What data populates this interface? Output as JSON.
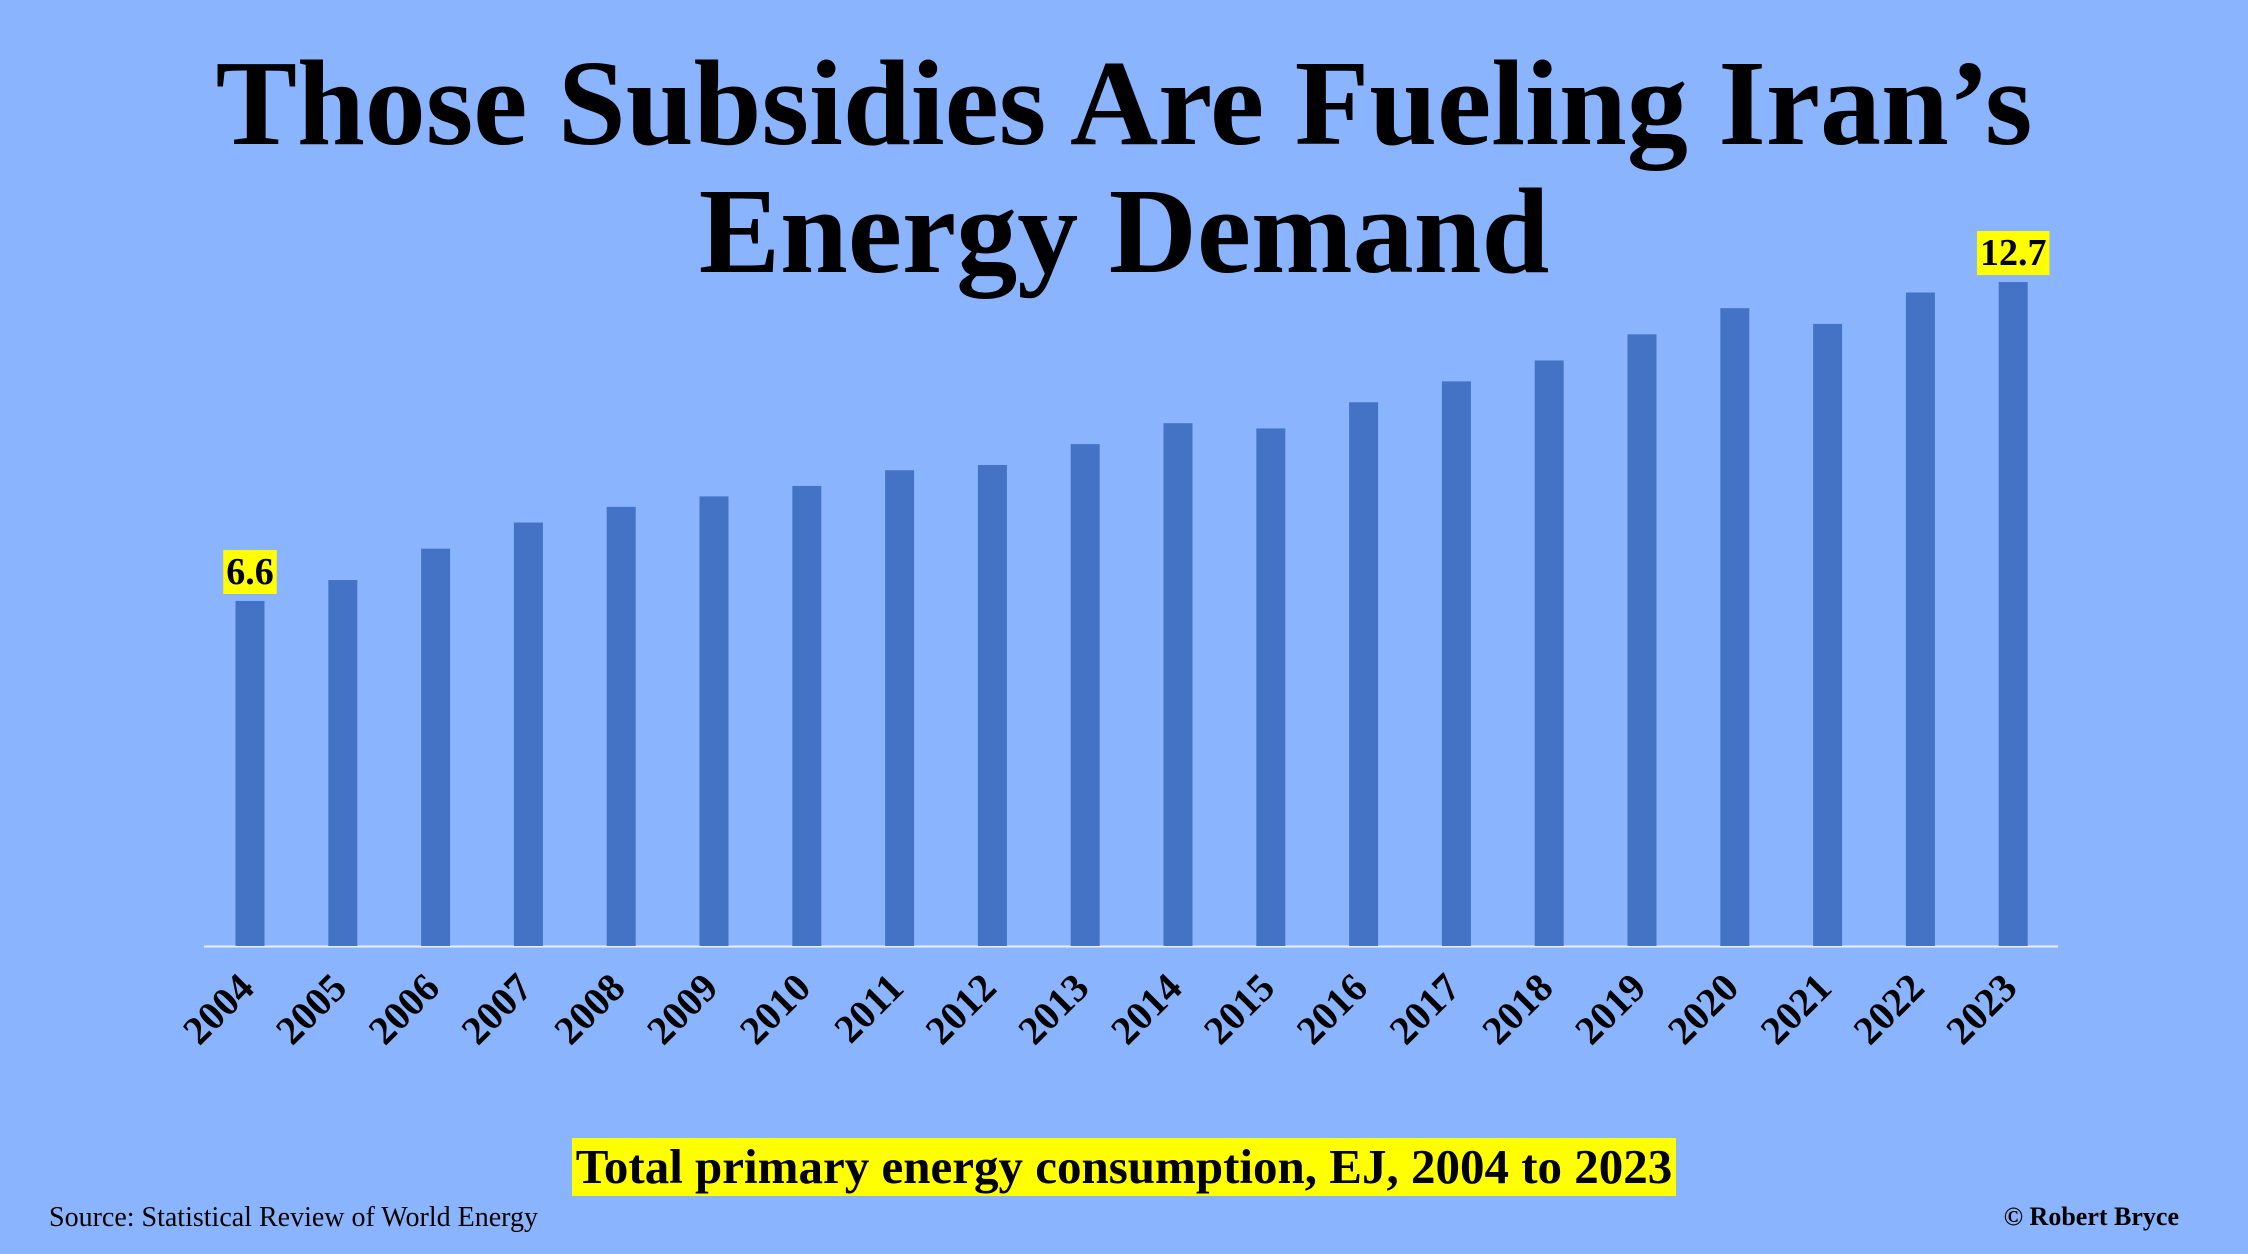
{
  "title": {
    "line1": "Those Subsidies Are Fueling Iran’s",
    "line2": "Energy Demand"
  },
  "subtitle": "Total primary energy consumption, EJ, 2004 to 2023",
  "source": "Source: Statistical Review of World Energy",
  "credit": "© Robert Bryce",
  "colors": {
    "background": "#8ab4fd",
    "bar": "#4472c4",
    "highlight": "#ffff00"
  },
  "chart_data": {
    "type": "bar",
    "title": "Those Subsidies Are Fueling Iran’s Energy Demand",
    "subtitle": "Total primary energy consumption, EJ, 2004 to 2023",
    "categories": [
      "2004",
      "2005",
      "2006",
      "2007",
      "2008",
      "2009",
      "2010",
      "2011",
      "2012",
      "2013",
      "2014",
      "2015",
      "2016",
      "2017",
      "2018",
      "2019",
      "2020",
      "2021",
      "2022",
      "2023"
    ],
    "values": [
      6.6,
      7.0,
      7.6,
      8.1,
      8.4,
      8.6,
      8.8,
      9.1,
      9.2,
      9.6,
      10.0,
      9.9,
      10.4,
      10.8,
      11.2,
      11.7,
      12.2,
      11.9,
      12.5,
      12.7
    ],
    "data_labels": [
      {
        "category": "2004",
        "text": "6.6"
      },
      {
        "category": "2023",
        "text": "12.7"
      }
    ],
    "ylim": [
      0,
      13.6
    ],
    "grid": false,
    "legend": "none"
  }
}
